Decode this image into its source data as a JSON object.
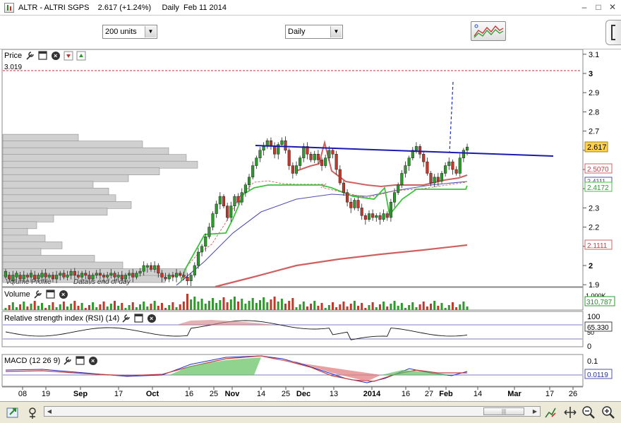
{
  "window": {
    "title": "ALTR - ALTRI SGPS    2.617 (+1.24%)     Daily  Feb 11 2014",
    "buttons": {
      "minimize": "–",
      "maximize": "□",
      "close": "✕"
    }
  },
  "toolbar": {
    "units_select": "200 units",
    "interval_select": "Daily"
  },
  "panes": {
    "price": {
      "label": "Price",
      "high_line_label": "3.019",
      "note": "Data is end of day",
      "note_prefix": "Volume Profile",
      "y_ticks": [
        "3.1",
        "3",
        "2.9",
        "2.8",
        "2.7",
        "2.6",
        "2.5",
        "2.4",
        "2.3",
        "2.2",
        "2.1",
        "2",
        "1.9"
      ],
      "last_price": "2.617",
      "ma1_value": "2.5070",
      "ma2_value": "2.4172",
      "ma2b_value": "2.4111",
      "ma3_value": "2.1111"
    },
    "volume": {
      "label": "Volume",
      "y_ticks": [
        "1.000K"
      ],
      "last_value": "310,787"
    },
    "rsi": {
      "label": "Relative strength index (RSI) (14)",
      "y_ticks": [
        "100",
        "50",
        "0"
      ],
      "last_value": "65.330"
    },
    "macd": {
      "label": "MACD (12 26 9)",
      "y_ticks": [
        "0.1"
      ],
      "last_value": "0.0119"
    }
  },
  "x_axis": {
    "labels": [
      {
        "t": "08",
        "x": 32,
        "bold": false
      },
      {
        "t": "19",
        "x": 65,
        "bold": false
      },
      {
        "t": "Sep",
        "x": 114,
        "bold": true
      },
      {
        "t": "17",
        "x": 168,
        "bold": false
      },
      {
        "t": "Oct",
        "x": 216,
        "bold": true
      },
      {
        "t": "16",
        "x": 268,
        "bold": false
      },
      {
        "t": "25",
        "x": 303,
        "bold": false
      },
      {
        "t": "Nov",
        "x": 329,
        "bold": true
      },
      {
        "t": "14",
        "x": 370,
        "bold": false
      },
      {
        "t": "25",
        "x": 405,
        "bold": false
      },
      {
        "t": "Dec",
        "x": 430,
        "bold": true
      },
      {
        "t": "13",
        "x": 473,
        "bold": false
      },
      {
        "t": "2014",
        "x": 527,
        "bold": true
      },
      {
        "t": "16",
        "x": 575,
        "bold": false
      },
      {
        "t": "27",
        "x": 608,
        "bold": false
      },
      {
        "t": "Feb",
        "x": 632,
        "bold": true
      },
      {
        "t": "14",
        "x": 677,
        "bold": false
      },
      {
        "t": "Mar",
        "x": 729,
        "bold": true
      },
      {
        "t": "17",
        "x": 779,
        "bold": false
      },
      {
        "t": "26",
        "x": 812,
        "bold": false
      }
    ]
  },
  "colors": {
    "up": "#2e9a2e",
    "down": "#c0392b",
    "trendline": "#1a1ab0",
    "ma_red": "#d06060",
    "ma_green": "#3cc43c",
    "ma_blue": "#5050b0",
    "macd_green": "#60c060",
    "macd_red": "#e08080",
    "last_price_bg": "#ffd24d"
  },
  "icons": {
    "properties": "wrench-icon",
    "window": "window-icon",
    "close": "close-circle-icon",
    "move_down": "move-down-icon",
    "move_up": "move-up-icon"
  }
}
